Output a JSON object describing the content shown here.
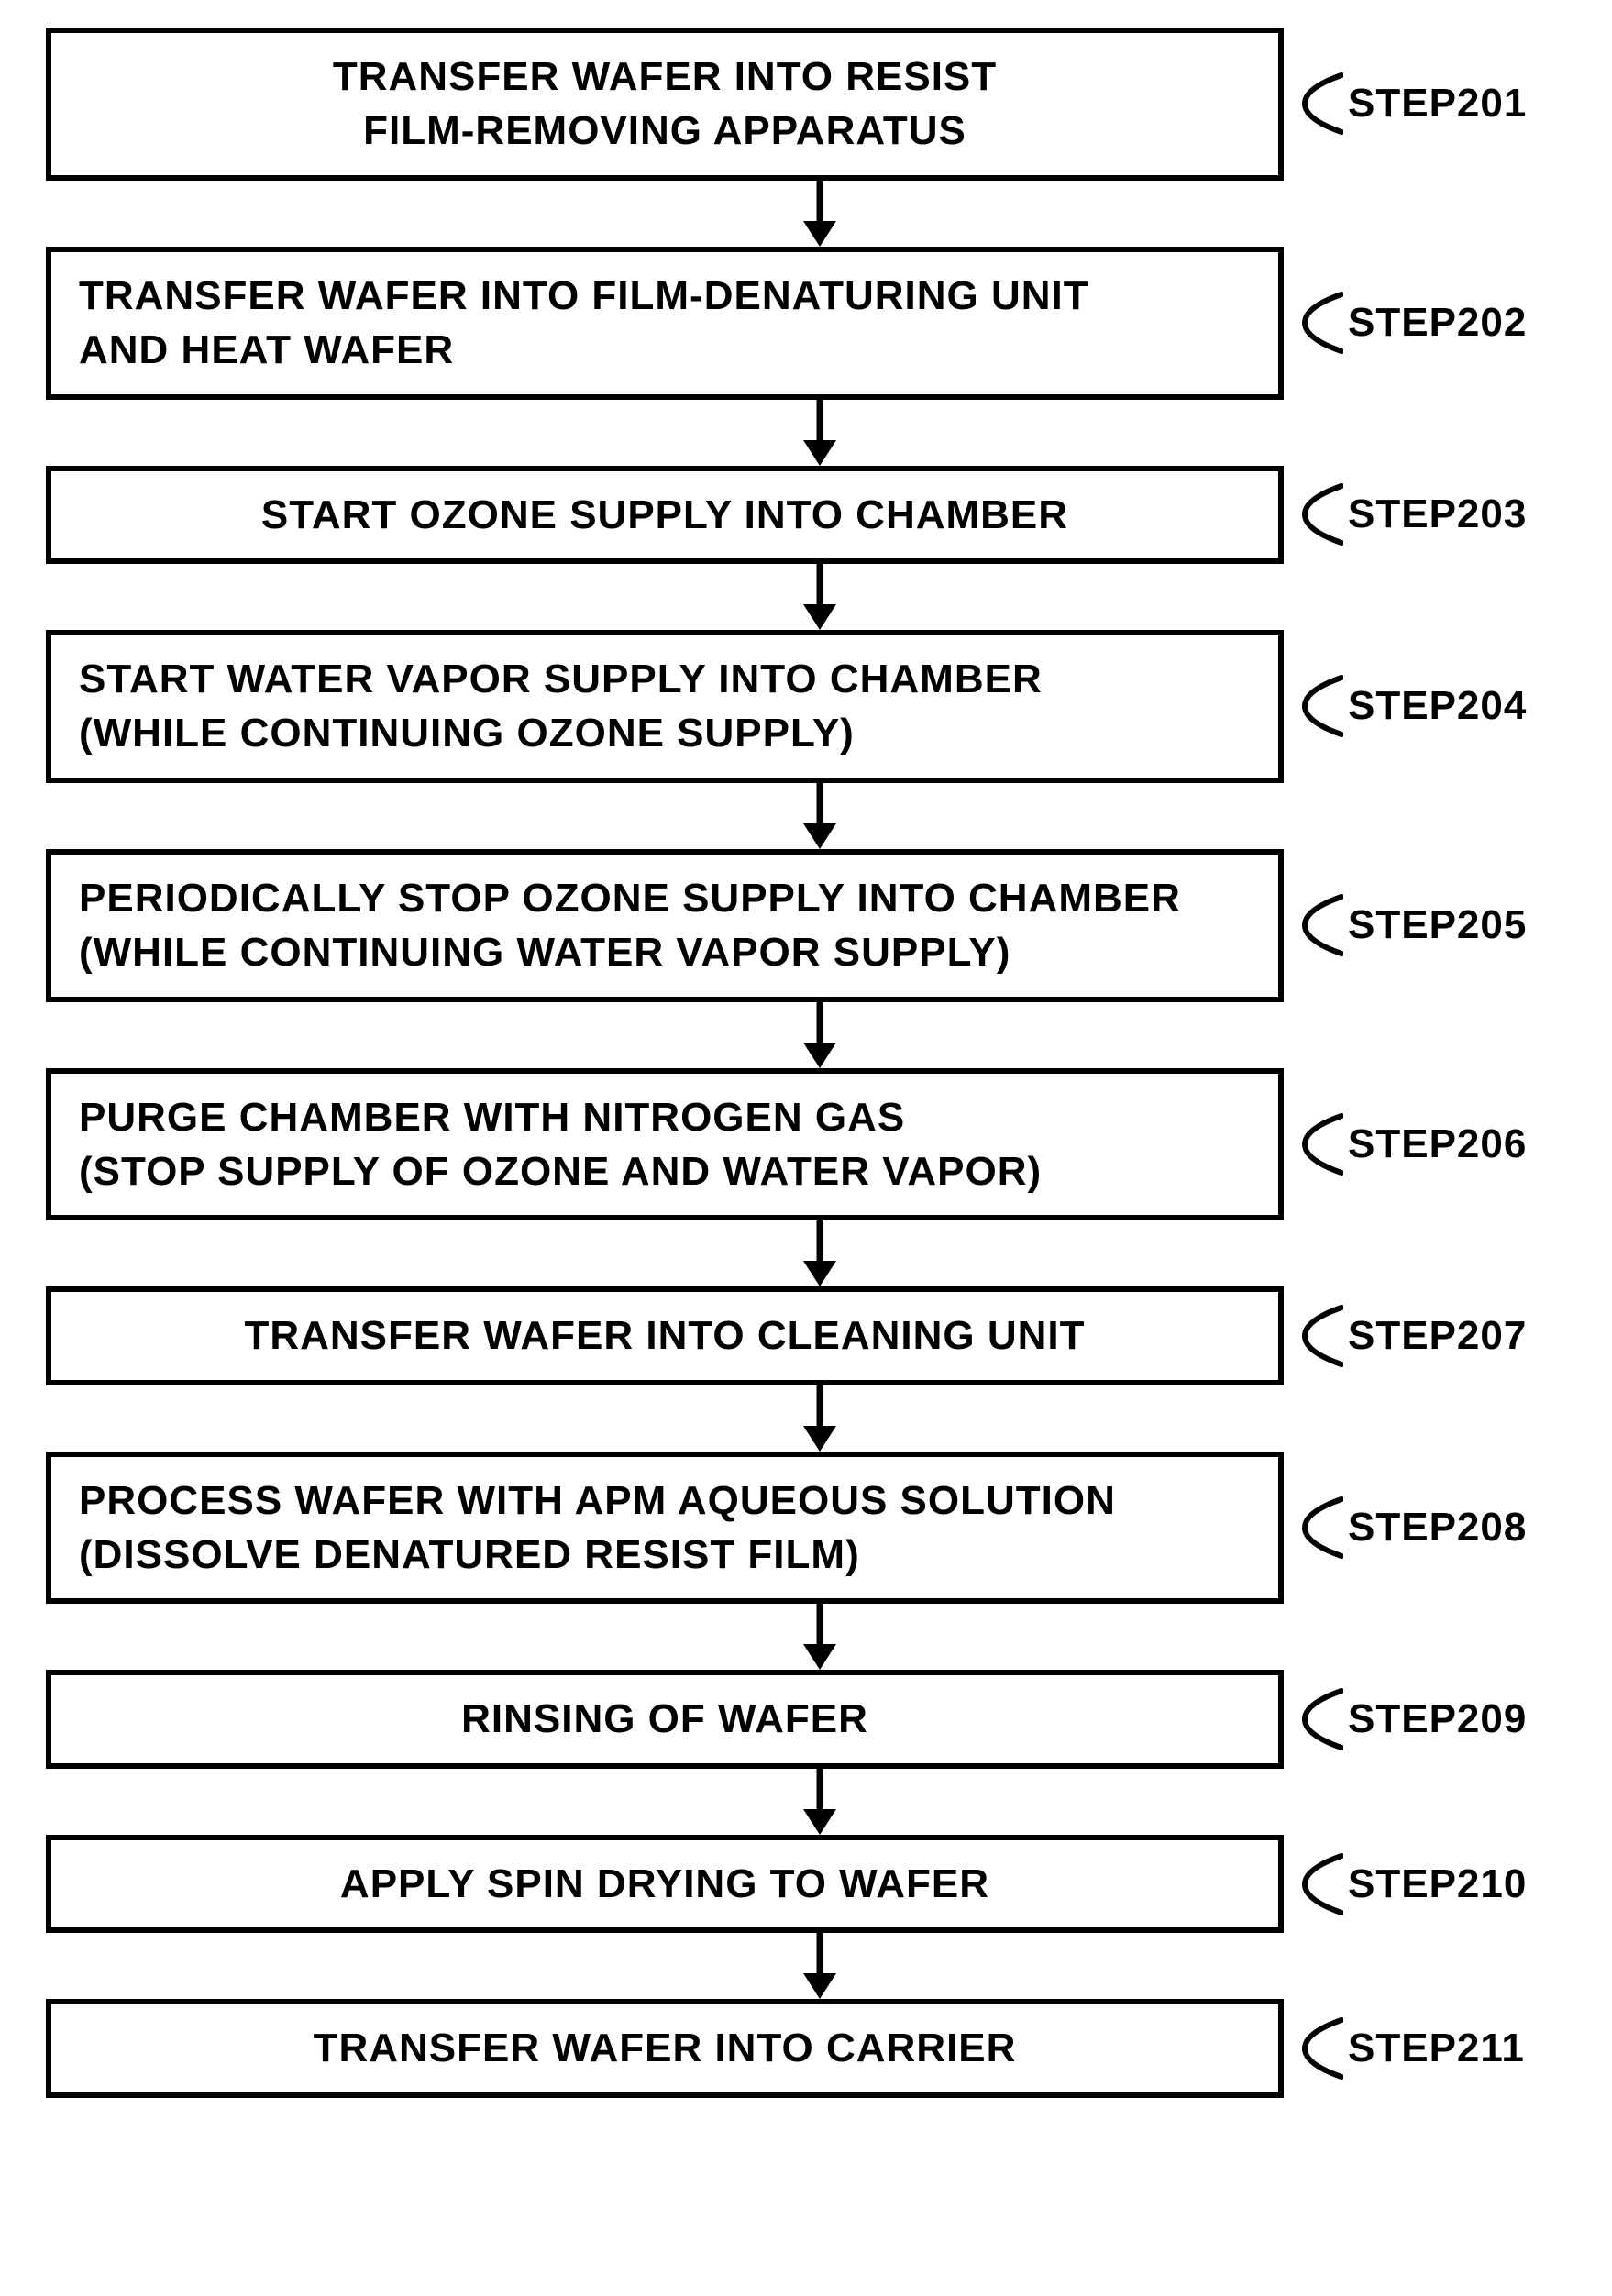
{
  "flowchart": {
    "type": "flowchart",
    "box_border_color": "#000000",
    "box_border_width": 6,
    "box_background": "#ffffff",
    "text_color": "#000000",
    "font_size": 44,
    "font_weight": 700,
    "arrow_color": "#000000",
    "arrow_stroke_width": 7,
    "steps": [
      {
        "id": "201",
        "label": "STEP201",
        "align": "center",
        "lines": [
          "TRANSFER WAFER INTO RESIST",
          "FILM-REMOVING APPARATUS"
        ]
      },
      {
        "id": "202",
        "label": "STEP202",
        "align": "left",
        "lines": [
          "TRANSFER WAFER INTO FILM-DENATURING UNIT",
          "AND HEAT WAFER"
        ]
      },
      {
        "id": "203",
        "label": "STEP203",
        "align": "center",
        "lines": [
          "START OZONE SUPPLY INTO CHAMBER"
        ]
      },
      {
        "id": "204",
        "label": "STEP204",
        "align": "left",
        "lines": [
          "START WATER VAPOR SUPPLY INTO CHAMBER",
          "(WHILE CONTINUING OZONE SUPPLY)"
        ]
      },
      {
        "id": "205",
        "label": "STEP205",
        "align": "left",
        "lines": [
          "PERIODICALLY STOP OZONE SUPPLY INTO CHAMBER",
          "(WHILE CONTINUING WATER VAPOR SUPPLY)"
        ]
      },
      {
        "id": "206",
        "label": "STEP206",
        "align": "left",
        "lines": [
          "PURGE CHAMBER WITH NITROGEN GAS",
          "(STOP SUPPLY OF OZONE AND WATER VAPOR)"
        ]
      },
      {
        "id": "207",
        "label": "STEP207",
        "align": "center",
        "lines": [
          "TRANSFER WAFER INTO CLEANING UNIT"
        ]
      },
      {
        "id": "208",
        "label": "STEP208",
        "align": "left",
        "lines": [
          "PROCESS WAFER WITH APM AQUEOUS SOLUTION",
          "(DISSOLVE DENATURED RESIST FILM)"
        ]
      },
      {
        "id": "209",
        "label": "STEP209",
        "align": "center",
        "lines": [
          "RINSING OF WAFER"
        ]
      },
      {
        "id": "210",
        "label": "STEP210",
        "align": "center",
        "lines": [
          "APPLY SPIN DRYING TO WAFER"
        ]
      },
      {
        "id": "211",
        "label": "STEP211",
        "align": "center",
        "lines": [
          "TRANSFER WAFER INTO CARRIER"
        ]
      }
    ]
  }
}
